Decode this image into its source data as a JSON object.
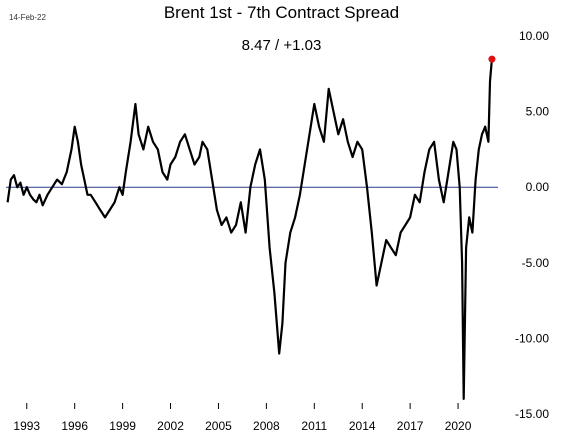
{
  "header": {
    "date_stamp": "14-Feb-22",
    "title": "Brent 1st - 7th Contract Spread",
    "subtitle": "8.47  /  +1.03"
  },
  "colors": {
    "series_line": "#000000",
    "zero_line": "#2b3a8c",
    "last_point_marker": "#e01010",
    "background": "#ffffff"
  },
  "chart_data": {
    "type": "line",
    "title": "Brent 1st - 7th Contract Spread",
    "xlabel": "",
    "ylabel": "",
    "xlim": [
      1991.7,
      2022.5
    ],
    "ylim": [
      -15,
      10
    ],
    "x_ticks": [
      {
        "value": 1993,
        "label": "1993"
      },
      {
        "value": 1996,
        "label": "1996"
      },
      {
        "value": 1999,
        "label": "1999"
      },
      {
        "value": 2002,
        "label": "2002"
      },
      {
        "value": 2005,
        "label": "2005"
      },
      {
        "value": 2008,
        "label": "2008"
      },
      {
        "value": 2011,
        "label": "2011"
      },
      {
        "value": 2014,
        "label": "2014"
      },
      {
        "value": 2017,
        "label": "2017"
      },
      {
        "value": 2020,
        "label": "2020"
      }
    ],
    "y_ticks": [
      {
        "value": 10,
        "label": "10.00"
      },
      {
        "value": 5,
        "label": "5.00"
      },
      {
        "value": 0,
        "label": "0.00"
      },
      {
        "value": -5,
        "label": "-5.00"
      },
      {
        "value": -10,
        "label": "-10.00"
      },
      {
        "value": -15,
        "label": "-15.00"
      }
    ],
    "y_axis_position": "right",
    "grid": false,
    "reference_line": {
      "value": 0
    },
    "last_point": {
      "x": 2022.12,
      "y": 8.47
    },
    "series": [
      {
        "x": [
          1991.8,
          1992.0,
          1992.2,
          1992.4,
          1992.6,
          1992.8,
          1993.0,
          1993.2,
          1993.4,
          1993.6,
          1993.8,
          1994.0,
          1994.3,
          1994.6,
          1994.9,
          1995.2,
          1995.5,
          1995.8,
          1996.0,
          1996.2,
          1996.4,
          1996.6,
          1996.8,
          1997.0,
          1997.3,
          1997.6,
          1997.9,
          1998.2,
          1998.5,
          1998.8,
          1999.0,
          1999.2,
          1999.5,
          1999.8,
          2000.0,
          2000.3,
          2000.6,
          2000.9,
          2001.2,
          2001.5,
          2001.8,
          2002.0,
          2002.3,
          2002.6,
          2002.9,
          2003.2,
          2003.5,
          2003.8,
          2004.0,
          2004.3,
          2004.6,
          2004.9,
          2005.2,
          2005.5,
          2005.8,
          2006.1,
          2006.4,
          2006.7,
          2007.0,
          2007.3,
          2007.6,
          2007.9,
          2008.2,
          2008.5,
          2008.8,
          2009.0,
          2009.2,
          2009.5,
          2009.8,
          2010.1,
          2010.4,
          2010.7,
          2011.0,
          2011.3,
          2011.6,
          2011.9,
          2012.2,
          2012.5,
          2012.8,
          2013.1,
          2013.4,
          2013.7,
          2014.0,
          2014.3,
          2014.6,
          2014.9,
          2015.2,
          2015.5,
          2015.8,
          2016.1,
          2016.4,
          2016.7,
          2017.0,
          2017.3,
          2017.6,
          2017.9,
          2018.2,
          2018.5,
          2018.8,
          2019.1,
          2019.4,
          2019.7,
          2019.9,
          2020.1,
          2020.25,
          2020.35,
          2020.5,
          2020.7,
          2020.9,
          2021.1,
          2021.3,
          2021.5,
          2021.7,
          2021.9,
          2022.0,
          2022.12
        ],
        "values": [
          -1.0,
          0.5,
          0.8,
          0.0,
          0.3,
          -0.5,
          0.0,
          -0.5,
          -0.8,
          -1.0,
          -0.5,
          -1.2,
          -0.5,
          0.0,
          0.5,
          0.2,
          1.0,
          2.5,
          4.0,
          3.0,
          1.5,
          0.5,
          -0.5,
          -0.5,
          -1.0,
          -1.5,
          -2.0,
          -1.5,
          -1.0,
          0.0,
          -0.5,
          1.0,
          3.0,
          5.5,
          3.5,
          2.5,
          4.0,
          3.0,
          2.5,
          1.0,
          0.5,
          1.5,
          2.0,
          3.0,
          3.5,
          2.5,
          1.5,
          2.0,
          3.0,
          2.5,
          0.5,
          -1.5,
          -2.5,
          -2.0,
          -3.0,
          -2.5,
          -1.0,
          -3.0,
          0.0,
          1.5,
          2.5,
          0.5,
          -4.0,
          -7.0,
          -11.0,
          -9.0,
          -5.0,
          -3.0,
          -2.0,
          -0.5,
          1.5,
          3.5,
          5.5,
          4.0,
          3.0,
          6.5,
          5.0,
          3.5,
          4.5,
          3.0,
          2.0,
          3.0,
          2.5,
          0.0,
          -3.0,
          -6.5,
          -5.0,
          -3.5,
          -4.0,
          -4.5,
          -3.0,
          -2.5,
          -2.0,
          -0.5,
          -1.0,
          1.0,
          2.5,
          3.0,
          0.5,
          -1.0,
          1.0,
          3.0,
          2.5,
          0.0,
          -5.0,
          -14.0,
          -4.0,
          -2.0,
          -3.0,
          0.5,
          2.5,
          3.5,
          4.0,
          3.0,
          7.0,
          8.47
        ]
      }
    ]
  }
}
